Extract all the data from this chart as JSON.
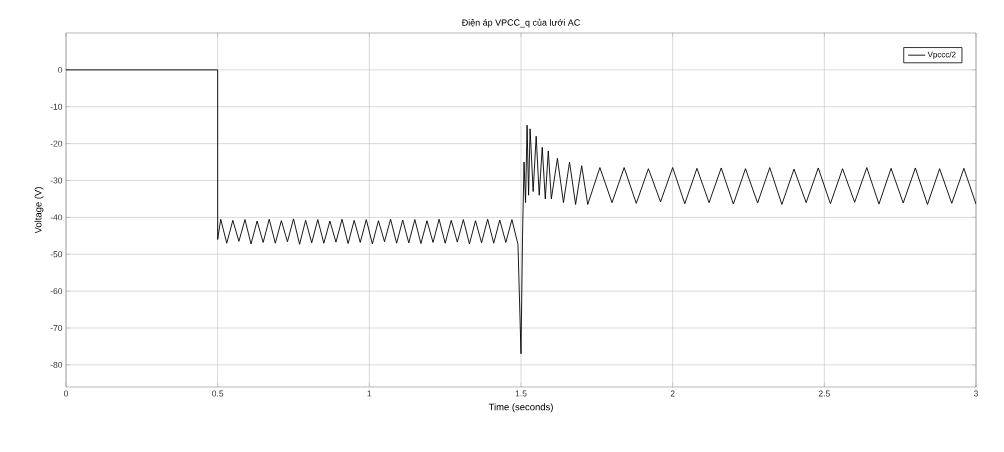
{
  "chart_data": {
    "type": "line",
    "title": "Điện áp VPCC_q của lưới AC",
    "xlabel": "Time (seconds)",
    "ylabel": "Voltage (V)",
    "x": [
      0,
      0.5,
      0.5,
      0.51,
      0.53,
      0.55,
      0.57,
      0.59,
      0.61,
      0.63,
      0.65,
      0.67,
      0.69,
      0.71,
      0.73,
      0.75,
      0.77,
      0.79,
      0.81,
      0.83,
      0.85,
      0.87,
      0.89,
      0.91,
      0.93,
      0.95,
      0.97,
      0.99,
      1.01,
      1.03,
      1.05,
      1.07,
      1.09,
      1.11,
      1.13,
      1.15,
      1.17,
      1.19,
      1.21,
      1.23,
      1.25,
      1.27,
      1.29,
      1.31,
      1.33,
      1.35,
      1.37,
      1.39,
      1.41,
      1.43,
      1.45,
      1.47,
      1.49,
      1.5,
      1.505,
      1.51,
      1.515,
      1.52,
      1.525,
      1.53,
      1.54,
      1.55,
      1.56,
      1.57,
      1.58,
      1.59,
      1.6,
      1.62,
      1.64,
      1.66,
      1.68,
      1.7,
      1.72,
      1.76,
      1.8,
      1.84,
      1.88,
      1.92,
      1.96,
      2.0,
      2.04,
      2.08,
      2.12,
      2.16,
      2.2,
      2.24,
      2.28,
      2.32,
      2.36,
      2.4,
      2.44,
      2.48,
      2.52,
      2.56,
      2.6,
      2.64,
      2.68,
      2.72,
      2.76,
      2.8,
      2.84,
      2.88,
      2.92,
      2.96,
      3.0
    ],
    "series": [
      {
        "name": "Vpccc/2",
        "color": "#000000",
        "values": [
          0,
          0,
          -46,
          -40.5,
          -47,
          -40.8,
          -46.5,
          -40.6,
          -47.2,
          -41,
          -46.8,
          -40.5,
          -47,
          -40.9,
          -46.6,
          -40.4,
          -47.3,
          -40.8,
          -46.9,
          -40.6,
          -47,
          -41,
          -46.7,
          -40.5,
          -47.1,
          -40.8,
          -46.8,
          -40.6,
          -47.2,
          -40.9,
          -46.6,
          -40.5,
          -47,
          -40.7,
          -46.9,
          -40.6,
          -47.1,
          -40.9,
          -46.8,
          -40.5,
          -47,
          -40.8,
          -46.7,
          -40.6,
          -47.2,
          -40.9,
          -46.9,
          -40.5,
          -47,
          -40.7,
          -46.8,
          -40.6,
          -47.3,
          -77,
          -45,
          -25,
          -36,
          -15,
          -34,
          -16,
          -33,
          -18,
          -34,
          -21,
          -35,
          -22,
          -35,
          -24,
          -36,
          -25,
          -36.5,
          -26,
          -36.5,
          -26.5,
          -36,
          -26.5,
          -36.2,
          -26.8,
          -35.8,
          -26.5,
          -36.3,
          -26.7,
          -36,
          -26.6,
          -36.4,
          -26.8,
          -36.1,
          -26.5,
          -36.5,
          -26.9,
          -36,
          -26.6,
          -36.3,
          -26.8,
          -35.9,
          -26.5,
          -36.4,
          -26.7,
          -36.1,
          -26.6,
          -36.5,
          -26.8,
          -36.2,
          -26.7,
          -36.4
        ]
      }
    ],
    "xlim": [
      0,
      3
    ],
    "ylim": [
      -86,
      10
    ],
    "xticks": [
      0,
      0.5,
      1,
      1.5,
      2,
      2.5,
      3
    ],
    "yticks": [
      -80,
      -70,
      -60,
      -50,
      -40,
      -30,
      -20,
      -10,
      0
    ],
    "grid": true,
    "legend": "top right"
  }
}
